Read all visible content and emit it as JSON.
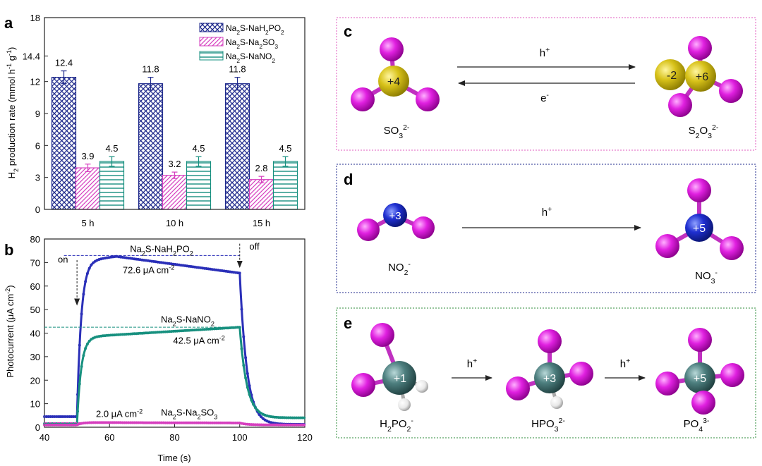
{
  "chart_data": [
    {
      "panel": "a",
      "type": "bar",
      "categories": [
        "5 h",
        "10 h",
        "15 h"
      ],
      "series": [
        {
          "name": "Na2S-NaH2PO2",
          "legend_main": "Na",
          "legend_parts": [
            [
              "Na",
              ""
            ],
            [
              "2",
              "sub"
            ],
            [
              "S-NaH",
              ""
            ],
            [
              "2",
              "sub"
            ],
            [
              "PO",
              ""
            ],
            [
              "2",
              "sub"
            ]
          ],
          "values": [
            12.4,
            11.8,
            11.8
          ],
          "errors": [
            0.6,
            0.6,
            0.6
          ],
          "labels": [
            "12.4",
            "11.8",
            "11.8"
          ],
          "color": "#1f2a8c",
          "pattern": "crosshatch"
        },
        {
          "name": "Na2S-Na2SO3",
          "legend_parts": [
            [
              "Na",
              ""
            ],
            [
              "2",
              "sub"
            ],
            [
              "S-Na",
              ""
            ],
            [
              "2",
              "sub"
            ],
            [
              "SO",
              ""
            ],
            [
              "3",
              "sub"
            ]
          ],
          "values": [
            3.9,
            3.2,
            2.8
          ],
          "errors": [
            0.35,
            0.3,
            0.3
          ],
          "labels": [
            "3.9",
            "3.2",
            "2.8"
          ],
          "color": "#d63fbf",
          "pattern": "diagonal"
        },
        {
          "name": "Na2S-NaNO2",
          "legend_parts": [
            [
              "Na",
              ""
            ],
            [
              "2",
              "sub"
            ],
            [
              "S-NaNO",
              ""
            ],
            [
              "2",
              "sub"
            ]
          ],
          "values": [
            4.5,
            4.5,
            4.5
          ],
          "errors": [
            0.45,
            0.45,
            0.45
          ],
          "labels": [
            "4.5",
            "4.5",
            "4.5"
          ],
          "color": "#168f7f",
          "pattern": "horizontal"
        }
      ],
      "ylim": [
        0,
        18
      ],
      "yticks": [
        "0",
        "3",
        "6",
        "9",
        "12",
        "14.4",
        "18"
      ],
      "ytick_values": [
        0,
        3,
        6,
        9,
        12,
        14.4,
        18
      ],
      "ylabel_parts": [
        [
          "H",
          ""
        ],
        [
          "2",
          "sub"
        ],
        [
          " production rate (mmol h",
          ""
        ],
        [
          "-1",
          "sup"
        ],
        [
          " g",
          ""
        ],
        [
          "-1",
          "sup"
        ],
        [
          ")",
          ""
        ]
      ],
      "legend_position": "top-right"
    },
    {
      "panel": "b",
      "type": "line",
      "xlim": [
        40,
        120
      ],
      "ylim": [
        0,
        80
      ],
      "xticks": [
        "40",
        "60",
        "80",
        "100",
        "120"
      ],
      "xtick_values": [
        40,
        60,
        80,
        100,
        120
      ],
      "yticks": [
        "0",
        "10",
        "20",
        "30",
        "40",
        "50",
        "60",
        "70",
        "80"
      ],
      "ytick_values": [
        0,
        10,
        20,
        30,
        40,
        50,
        60,
        70,
        80
      ],
      "xlabel": "Time (s)",
      "ylabel_parts": [
        [
          "Photocurrent (μA cm",
          ""
        ],
        [
          "-2",
          "sup"
        ],
        [
          ")",
          ""
        ]
      ],
      "light_on_time": 50,
      "light_off_time": 100,
      "on_label": "on",
      "off_label": "off",
      "series": [
        {
          "name": "Na2S-NaH2PO2",
          "label_parts": [
            [
              "Na",
              ""
            ],
            [
              "2",
              "sub"
            ],
            [
              "S-NaH",
              ""
            ],
            [
              "2",
              "sub"
            ],
            [
              "PO",
              ""
            ],
            [
              "2",
              "sub"
            ]
          ],
          "color": "#2a2fb8",
          "dark": 4.5,
          "peak": 72.6,
          "peak_time": 62,
          "end_value": 65.5,
          "tail_value": 1.2,
          "annotation_parts": [
            [
              "72.6 μA cm",
              ""
            ],
            [
              "-2",
              "sup"
            ]
          ],
          "reference_level": 73
        },
        {
          "name": "Na2S-NaNO2",
          "label_parts": [
            [
              "Na",
              ""
            ],
            [
              "2",
              "sub"
            ],
            [
              "S-NaNO",
              ""
            ],
            [
              "2",
              "sub"
            ]
          ],
          "color": "#17907f",
          "dark": 1.5,
          "peak": 42.5,
          "peak_time": 100,
          "end_value": 42.5,
          "tail_value": 4.0,
          "annotation_parts": [
            [
              "42.5 μA cm",
              ""
            ],
            [
              "-2",
              "sup"
            ]
          ],
          "reference_level": 42.5
        },
        {
          "name": "Na2S-Na2SO3",
          "label_parts": [
            [
              "Na",
              ""
            ],
            [
              "2",
              "sub"
            ],
            [
              "S-Na",
              ""
            ],
            [
              "2",
              "sub"
            ],
            [
              "SO",
              ""
            ],
            [
              "3",
              "sub"
            ]
          ],
          "color": "#d63fbf",
          "dark": 1.0,
          "peak": 2.0,
          "peak_time": 55,
          "end_value": 1.8,
          "tail_value": 1.0,
          "annotation_parts": [
            [
              "2.0 μA cm",
              ""
            ],
            [
              "-2",
              "sup"
            ]
          ],
          "reference_level": 2.0
        }
      ]
    }
  ],
  "panel_c": {
    "letter": "c",
    "forward_label_parts": [
      [
        "h",
        ""
      ],
      [
        "+",
        "sup"
      ]
    ],
    "reverse_label_parts": [
      [
        "e",
        ""
      ],
      [
        "-",
        "sup"
      ]
    ],
    "left": {
      "charge": "+4",
      "formula_parts": [
        [
          "SO",
          ""
        ],
        [
          "3",
          "sub"
        ],
        [
          "2-",
          "sup"
        ]
      ]
    },
    "right": {
      "charge_s1": "-2",
      "charge_s2": "+6",
      "formula_parts": [
        [
          "S",
          ""
        ],
        [
          "2",
          "sub"
        ],
        [
          "O",
          ""
        ],
        [
          "3",
          "sub"
        ],
        [
          "2-",
          "sup"
        ]
      ]
    }
  },
  "panel_d": {
    "letter": "d",
    "arrow_label_parts": [
      [
        "h",
        ""
      ],
      [
        "+",
        "sup"
      ]
    ],
    "left": {
      "charge": "+3",
      "formula_parts": [
        [
          "NO",
          ""
        ],
        [
          "2",
          "sub"
        ],
        [
          "-",
          "sup"
        ]
      ]
    },
    "right": {
      "charge": "+5",
      "formula_parts": [
        [
          "NO",
          ""
        ],
        [
          "3",
          "sub"
        ],
        [
          "-",
          "sup"
        ]
      ]
    }
  },
  "panel_e": {
    "letter": "e",
    "arrow1_label_parts": [
      [
        "h",
        ""
      ],
      [
        "+",
        "sup"
      ]
    ],
    "arrow2_label_parts": [
      [
        "h",
        ""
      ],
      [
        "+",
        "sup"
      ]
    ],
    "first": {
      "charge": "+1",
      "formula_parts": [
        [
          "H",
          ""
        ],
        [
          "2",
          "sub"
        ],
        [
          "PO",
          ""
        ],
        [
          "2",
          "sub"
        ],
        [
          "-",
          "sup"
        ]
      ]
    },
    "second": {
      "charge": "+3",
      "formula_parts": [
        [
          "HPO",
          ""
        ],
        [
          "3",
          "sub"
        ],
        [
          "2-",
          "sup"
        ]
      ]
    },
    "third": {
      "charge": "+5",
      "formula_parts": [
        [
          "PO",
          ""
        ],
        [
          "4",
          "sub"
        ],
        [
          "3-",
          "sup"
        ]
      ]
    }
  },
  "colors": {
    "oxygen": "#e020e0",
    "sulfur": "#d8c21a",
    "nitrogen": "#1f2fd0",
    "phosphorus": "#4d7f7f",
    "hydrogen": "#e8e8e8",
    "box_c": "#e05bbf",
    "box_d": "#1f2a8c",
    "box_e": "#2e8b3a"
  }
}
